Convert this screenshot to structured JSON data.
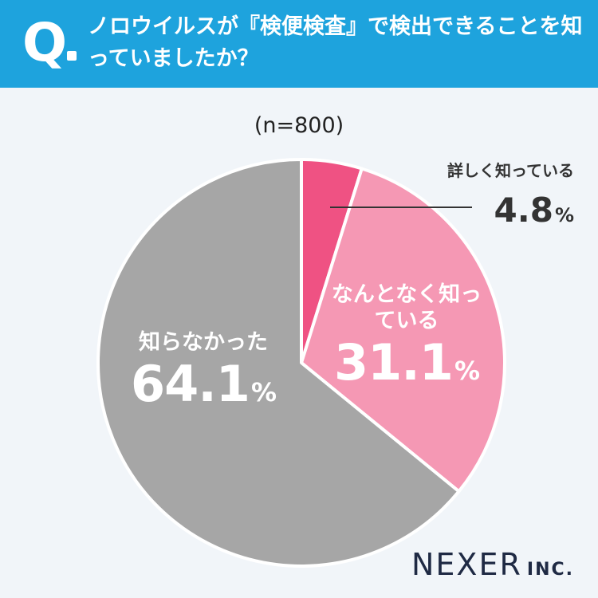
{
  "header": {
    "q_letter": "Q",
    "question": "ノロウイルスが『検便検査』で検出できることを知っていましたか？"
  },
  "sample_size": "(n=800)",
  "logo": {
    "main": "NEXER",
    "suffix": "INC."
  },
  "colors": {
    "header_bg": "#1ea3dd",
    "detailed": "#ef5283",
    "somewhat": "#f598b4",
    "not_known": "#a6a6a6"
  },
  "chart_data": {
    "type": "pie",
    "slices": [
      {
        "label": "詳しく知っている",
        "value": 4.8,
        "display": "4.8",
        "unit": "%"
      },
      {
        "label": "なんとなく知っている",
        "value": 31.1,
        "display": "31.1",
        "unit": "%"
      },
      {
        "label": "知らなかった",
        "value": 64.1,
        "display": "64.1",
        "unit": "%"
      }
    ]
  }
}
